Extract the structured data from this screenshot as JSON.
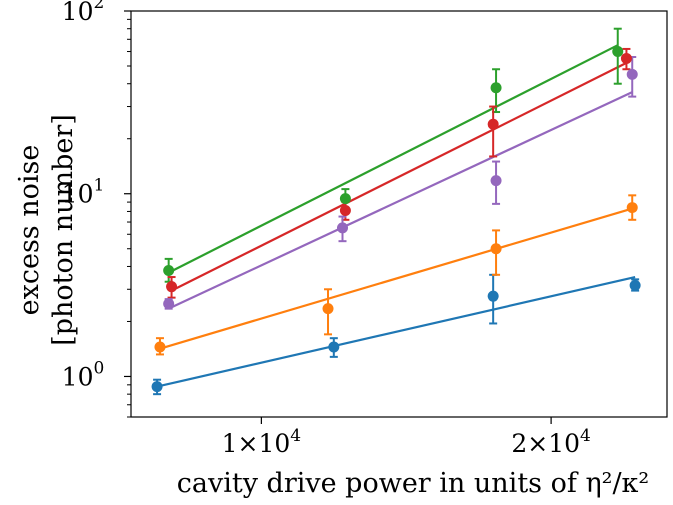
{
  "chart_data": {
    "type": "scatter",
    "xlabel": "cavity drive power in units of η²/κ²",
    "ylabel_line1": "excess noise",
    "ylabel_line2": "[photon number]",
    "xlim": [
      5500,
      24000
    ],
    "ylim": [
      0.6,
      100
    ],
    "y_scale": "log",
    "grid": false,
    "x_ticks": [
      {
        "value": 10000,
        "label_main": "1×10",
        "label_exp": "4"
      },
      {
        "value": 20000,
        "label_main": "2×10",
        "label_exp": "4"
      }
    ],
    "y_ticks": [
      {
        "value": 1,
        "label_main": "10",
        "label_exp": "0"
      },
      {
        "value": 10,
        "label_main": "10",
        "label_exp": "1"
      },
      {
        "value": 100,
        "label_main": "10",
        "label_exp": "2"
      }
    ],
    "series": [
      {
        "color": "#1f77b4",
        "points": [
          {
            "x": 6400,
            "y": 0.88,
            "lo": 0.8,
            "hi": 0.96
          },
          {
            "x": 12500,
            "y": 1.45,
            "lo": 1.28,
            "hi": 1.62
          },
          {
            "x": 18000,
            "y": 2.75,
            "lo": 1.95,
            "hi": 3.6
          },
          {
            "x": 22900,
            "y": 3.15,
            "lo": 2.95,
            "hi": 3.4
          }
        ],
        "fit": [
          {
            "x": 6400,
            "y": 0.88
          },
          {
            "x": 22900,
            "y": 3.5
          }
        ]
      },
      {
        "color": "#ff7f0e",
        "points": [
          {
            "x": 6500,
            "y": 1.45,
            "lo": 1.32,
            "hi": 1.62
          },
          {
            "x": 12300,
            "y": 2.35,
            "lo": 1.7,
            "hi": 3.0
          },
          {
            "x": 18100,
            "y": 5.0,
            "lo": 3.6,
            "hi": 6.3
          },
          {
            "x": 22800,
            "y": 8.4,
            "lo": 7.2,
            "hi": 9.8
          }
        ],
        "fit": [
          {
            "x": 6500,
            "y": 1.42
          },
          {
            "x": 22800,
            "y": 8.3
          }
        ]
      },
      {
        "color": "#2ca02c",
        "points": [
          {
            "x": 6800,
            "y": 3.8,
            "lo": 3.3,
            "hi": 4.4
          },
          {
            "x": 12900,
            "y": 9.4,
            "lo": 8.3,
            "hi": 10.6
          },
          {
            "x": 18100,
            "y": 38,
            "lo": 28,
            "hi": 48
          },
          {
            "x": 22300,
            "y": 60,
            "lo": 40,
            "hi": 80
          }
        ],
        "fit": [
          {
            "x": 6800,
            "y": 3.7
          },
          {
            "x": 22300,
            "y": 65
          }
        ]
      },
      {
        "color": "#d62728",
        "points": [
          {
            "x": 6900,
            "y": 3.1,
            "lo": 2.7,
            "hi": 3.5
          },
          {
            "x": 12900,
            "y": 8.1,
            "lo": 7.2,
            "hi": 9.0
          },
          {
            "x": 18000,
            "y": 24,
            "lo": 16,
            "hi": 30
          },
          {
            "x": 22600,
            "y": 55,
            "lo": 48,
            "hi": 62
          }
        ],
        "fit": [
          {
            "x": 6900,
            "y": 2.95
          },
          {
            "x": 22600,
            "y": 52
          }
        ]
      },
      {
        "color": "#9467bd",
        "points": [
          {
            "x": 6800,
            "y": 2.5,
            "lo": 2.35,
            "hi": 2.65
          },
          {
            "x": 12800,
            "y": 6.5,
            "lo": 5.5,
            "hi": 7.5
          },
          {
            "x": 18100,
            "y": 11.8,
            "lo": 8.8,
            "hi": 15
          },
          {
            "x": 22800,
            "y": 45,
            "lo": 34,
            "hi": 56
          }
        ],
        "fit": [
          {
            "x": 6800,
            "y": 2.35
          },
          {
            "x": 22800,
            "y": 36
          }
        ]
      }
    ]
  }
}
